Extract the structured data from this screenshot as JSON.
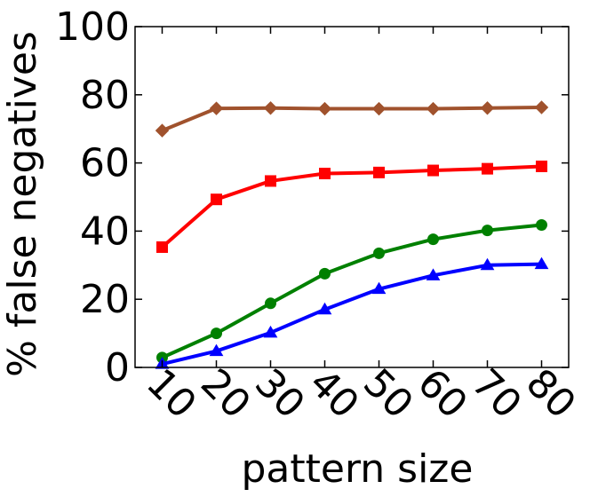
{
  "chart_data": {
    "type": "line",
    "xlabel": "pattern size",
    "ylabel": "% false negatives",
    "x": [
      10,
      20,
      30,
      40,
      50,
      60,
      70,
      80
    ],
    "x_tick_labels": [
      "10",
      "20",
      "30",
      "40",
      "50",
      "60",
      "70",
      "80"
    ],
    "ylim": [
      0,
      100
    ],
    "y_ticks": [
      0,
      20,
      40,
      60,
      80,
      100
    ],
    "y_tick_labels": [
      "0",
      "20",
      "40",
      "60",
      "80",
      "100"
    ],
    "grid": false,
    "legend": "none",
    "series": [
      {
        "color": "#a0522d",
        "marker": "diamond",
        "values": [
          69.5,
          76.0,
          76.1,
          75.9,
          75.9,
          75.9,
          76.1,
          76.3
        ]
      },
      {
        "color": "#ff0000",
        "marker": "square",
        "values": [
          35.3,
          49.3,
          54.7,
          56.9,
          57.2,
          57.8,
          58.3,
          59.0
        ]
      },
      {
        "color": "#008000",
        "marker": "circle",
        "values": [
          2.9,
          10.0,
          18.8,
          27.5,
          33.5,
          37.6,
          40.2,
          41.8
        ]
      },
      {
        "color": "#0000ff",
        "marker": "triangle",
        "values": [
          1.0,
          4.8,
          10.2,
          17.0,
          23.0,
          27.0,
          30.0,
          30.3
        ]
      }
    ]
  }
}
